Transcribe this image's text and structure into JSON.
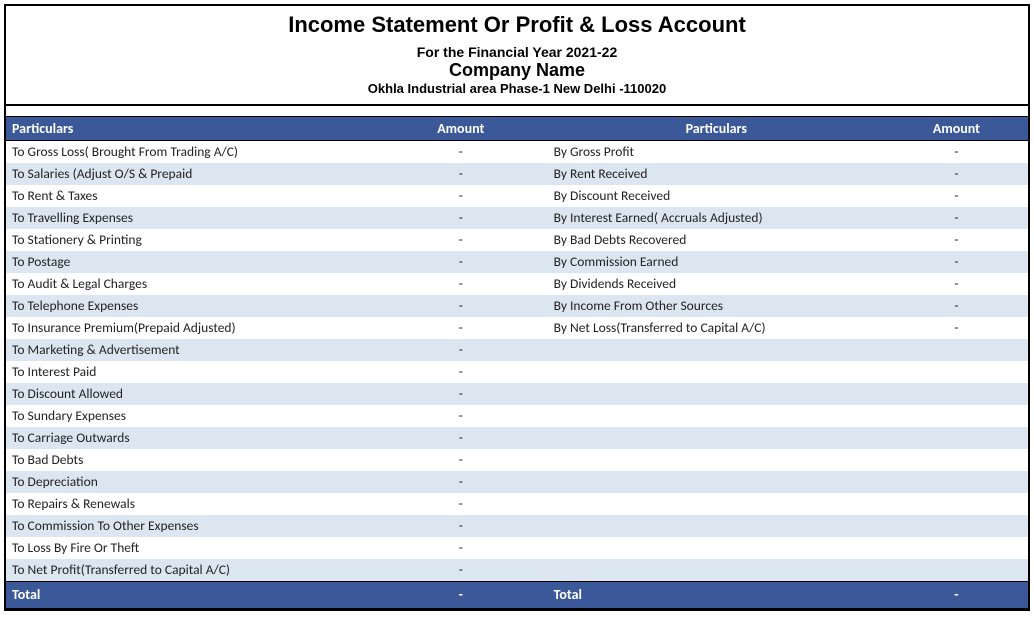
{
  "header": {
    "title": "Income Statement Or Profit & Loss Account",
    "subtitle1": "For the Financial Year 2021-22",
    "subtitle2": "Company Name",
    "subtitle3": "Okhla Industrial area Phase-1 New Delhi -110020"
  },
  "colors": {
    "header_bg": "#3b5998",
    "header_text": "#ffffff",
    "row_alt_bg": "#dce6f1",
    "row_bg": "#ffffff",
    "border": "#000000"
  },
  "columns": {
    "left_particulars": "Particulars",
    "left_amount": "Amount",
    "right_particulars": "Particulars",
    "right_amount": "Amount"
  },
  "rows": [
    {
      "l": "To Gross Loss( Brought From Trading A/C)",
      "la": "-",
      "r": "By Gross Profit",
      "ra": "-"
    },
    {
      "l": "To Salaries (Adjust O/S & Prepaid",
      "la": "-",
      "r": "By Rent Received",
      "ra": "-"
    },
    {
      "l": "To Rent & Taxes",
      "la": "-",
      "r": "By Discount Received",
      "ra": "-"
    },
    {
      "l": "To Travelling Expenses",
      "la": "-",
      "r": "By Interest Earned( Accruals Adjusted)",
      "ra": "-"
    },
    {
      "l": "To Stationery & Printing",
      "la": "-",
      "r": "By Bad Debts Recovered",
      "ra": "-"
    },
    {
      "l": "To Postage",
      "la": "-",
      "r": "By Commission Earned",
      "ra": "-"
    },
    {
      "l": "To Audit & Legal Charges",
      "la": "-",
      "r": "By Dividends Received",
      "ra": "-"
    },
    {
      "l": "To Telephone Expenses",
      "la": "-",
      "r": "By Income From Other Sources",
      "ra": "-"
    },
    {
      "l": "To Insurance Premium(Prepaid Adjusted)",
      "la": "-",
      "r": "By Net Loss(Transferred to Capital A/C)",
      "ra": "-"
    },
    {
      "l": "To Marketing & Advertisement",
      "la": "-",
      "r": "",
      "ra": ""
    },
    {
      "l": "To Interest Paid",
      "la": "-",
      "r": "",
      "ra": ""
    },
    {
      "l": "To Discount Allowed",
      "la": "-",
      "r": "",
      "ra": ""
    },
    {
      "l": "To Sundary Expenses",
      "la": "-",
      "r": "",
      "ra": ""
    },
    {
      "l": "To Carriage Outwards",
      "la": "-",
      "r": "",
      "ra": ""
    },
    {
      "l": "To Bad Debts",
      "la": "-",
      "r": "",
      "ra": ""
    },
    {
      "l": "To Depreciation",
      "la": "-",
      "r": "",
      "ra": ""
    },
    {
      "l": "To Repairs & Renewals",
      "la": "-",
      "r": "",
      "ra": ""
    },
    {
      "l": "To Commission To Other Expenses",
      "la": "-",
      "r": "",
      "ra": ""
    },
    {
      "l": "To Loss By Fire Or Theft",
      "la": "-",
      "r": "",
      "ra": ""
    },
    {
      "l": "To Net Profit(Transferred to Capital A/C)",
      "la": "-",
      "r": "",
      "ra": ""
    }
  ],
  "totals": {
    "left_label": "Total",
    "left_amount": "-",
    "right_label": "Total",
    "right_amount": "-"
  }
}
